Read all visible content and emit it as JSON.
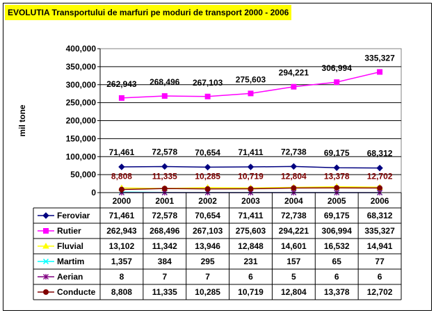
{
  "title": "EVOLUTIA Transportului de marfuri pe moduri de transport 2000 - 2006",
  "chart_data": {
    "type": "line",
    "ylabel": "mil tone",
    "ylim": [
      0,
      400000
    ],
    "yticks": [
      "0",
      "50,000",
      "100,000",
      "150,000",
      "200,000",
      "250,000",
      "300,000",
      "350,000",
      "400,000"
    ],
    "categories": [
      "2000",
      "2001",
      "2002",
      "2003",
      "2004",
      "2005",
      "2006"
    ],
    "legend": "data-table",
    "series": [
      {
        "name": "Feroviar",
        "color": "#000080",
        "marker": "diamond",
        "values": [
          71461,
          72578,
          70654,
          71411,
          72738,
          69175,
          68312
        ],
        "labels": [
          "71,461",
          "72,578",
          "70,654",
          "71,411",
          "72,738",
          "69,175",
          "68,312"
        ],
        "label_color": "#000000",
        "show_labels": true
      },
      {
        "name": "Rutier",
        "color": "#ff00ff",
        "marker": "square",
        "values": [
          262943,
          268496,
          267103,
          275603,
          294221,
          306994,
          335327
        ],
        "labels": [
          "262,943",
          "268,496",
          "267,103",
          "275,603",
          "294,221",
          "306,994",
          "335,327"
        ],
        "label_color": "#000000",
        "show_labels": true
      },
      {
        "name": "Fluvial",
        "color": "#ffff00",
        "marker": "triangle",
        "values": [
          13102,
          11342,
          13946,
          12848,
          14601,
          16532,
          14941
        ],
        "labels": [
          "13,102",
          "11,342",
          "13,946",
          "12,848",
          "14,601",
          "16,532",
          "14,941"
        ],
        "show_labels": false
      },
      {
        "name": "Martim",
        "color": "#00ffff",
        "marker": "x",
        "values": [
          1357,
          384,
          295,
          231,
          157,
          65,
          77
        ],
        "labels": [
          "1,357",
          "384",
          "295",
          "231",
          "157",
          "65",
          "77"
        ],
        "show_labels": false
      },
      {
        "name": "Aerian",
        "color": "#800080",
        "marker": "star",
        "values": [
          8,
          7,
          7,
          6,
          5,
          6,
          6
        ],
        "labels": [
          "8",
          "7",
          "7",
          "6",
          "5",
          "6",
          "6"
        ],
        "show_labels": false
      },
      {
        "name": "Conducte",
        "color": "#800000",
        "marker": "circle",
        "values": [
          8808,
          11335,
          10285,
          10719,
          12804,
          13378,
          12702
        ],
        "labels": [
          "8,808",
          "11,335",
          "10,285",
          "10,719",
          "12,804",
          "13,378",
          "12,702"
        ],
        "label_color": "#800000",
        "show_labels": true
      }
    ]
  }
}
